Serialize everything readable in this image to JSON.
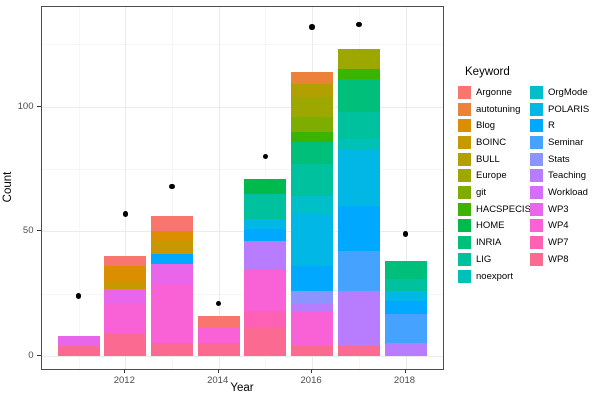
{
  "chart_data": {
    "type": "bar",
    "stacked": true,
    "xlabel": "Year",
    "ylabel": "Count",
    "legend_title": "Keyword",
    "x_major_ticks": [
      2012,
      2014,
      2016,
      2018
    ],
    "x_minor_ticks": [
      2011,
      2013,
      2015,
      2017
    ],
    "y_major_ticks": [
      0,
      50,
      100
    ],
    "y_minor_ticks": [
      25,
      75,
      125
    ],
    "ylim": [
      -6,
      140
    ],
    "grid": true,
    "legend_position": "right",
    "keywords": [
      {
        "label": "Argonne",
        "color": "#F8766D"
      },
      {
        "label": "autotuning",
        "color": "#EC8239"
      },
      {
        "label": "Blog",
        "color": "#DB8E00"
      },
      {
        "label": "BOINC",
        "color": "#C79800"
      },
      {
        "label": "BULL",
        "color": "#B2A000"
      },
      {
        "label": "Europe",
        "color": "#9CA700"
      },
      {
        "label": "git",
        "color": "#7EAD00"
      },
      {
        "label": "HACSPECIS",
        "color": "#3CB300"
      },
      {
        "label": "HOME",
        "color": "#00BB4B"
      },
      {
        "label": "INRIA",
        "color": "#00BF7A"
      },
      {
        "label": "LIG",
        "color": "#00C19E"
      },
      {
        "label": "noexport",
        "color": "#00C1B7"
      },
      {
        "label": "OrgMode",
        "color": "#00BFC9"
      },
      {
        "label": "POLARIS",
        "color": "#00B7E6"
      },
      {
        "label": "R",
        "color": "#00A9FF"
      },
      {
        "label": "Seminar",
        "color": "#45A2FF"
      },
      {
        "label": "Stats",
        "color": "#8C95FF"
      },
      {
        "label": "Teaching",
        "color": "#B87CFF"
      },
      {
        "label": "Workload",
        "color": "#D56FFB"
      },
      {
        "label": "WP3",
        "color": "#E965E9"
      },
      {
        "label": "WP4",
        "color": "#F962D7"
      },
      {
        "label": "WP7",
        "color": "#FF62B5"
      },
      {
        "label": "WP8",
        "color": "#FB6A90"
      }
    ],
    "bars": [
      {
        "year": 2011,
        "total": 8,
        "segments_bottom_to_top": [
          {
            "keyword": "WP8",
            "value": 4
          },
          {
            "keyword": "WP3",
            "value": 4
          }
        ]
      },
      {
        "year": 2012,
        "total": 40,
        "segments_bottom_to_top": [
          {
            "keyword": "WP8",
            "value": 9
          },
          {
            "keyword": "WP4",
            "value": 12
          },
          {
            "keyword": "WP3",
            "value": 6
          },
          {
            "keyword": "BOINC",
            "value": 3
          },
          {
            "keyword": "Blog",
            "value": 6
          },
          {
            "keyword": "Argonne",
            "value": 4
          }
        ]
      },
      {
        "year": 2013,
        "total": 56,
        "segments_bottom_to_top": [
          {
            "keyword": "WP8",
            "value": 5
          },
          {
            "keyword": "WP4",
            "value": 24
          },
          {
            "keyword": "WP3",
            "value": 8
          },
          {
            "keyword": "R",
            "value": 4
          },
          {
            "keyword": "BOINC",
            "value": 5
          },
          {
            "keyword": "Blog",
            "value": 4
          },
          {
            "keyword": "Argonne",
            "value": 6
          }
        ]
      },
      {
        "year": 2014,
        "total": 16,
        "segments_bottom_to_top": [
          {
            "keyword": "WP8",
            "value": 5
          },
          {
            "keyword": "WP4",
            "value": 6
          },
          {
            "keyword": "Argonne",
            "value": 5
          }
        ]
      },
      {
        "year": 2015,
        "total": 71,
        "segments_bottom_to_top": [
          {
            "keyword": "WP8",
            "value": 11
          },
          {
            "keyword": "WP7",
            "value": 7
          },
          {
            "keyword": "WP4",
            "value": 17
          },
          {
            "keyword": "Teaching",
            "value": 11
          },
          {
            "keyword": "R",
            "value": 5
          },
          {
            "keyword": "POLARIS",
            "value": 4
          },
          {
            "keyword": "LIG",
            "value": 10
          },
          {
            "keyword": "HOME",
            "value": 6
          }
        ]
      },
      {
        "year": 2016,
        "total": 114,
        "segments_bottom_to_top": [
          {
            "keyword": "WP8",
            "value": 4
          },
          {
            "keyword": "WP4",
            "value": 14
          },
          {
            "keyword": "Teaching",
            "value": 3
          },
          {
            "keyword": "Stats",
            "value": 5
          },
          {
            "keyword": "R",
            "value": 10
          },
          {
            "keyword": "POLARIS",
            "value": 21
          },
          {
            "keyword": "OrgMode",
            "value": 7
          },
          {
            "keyword": "LIG",
            "value": 13
          },
          {
            "keyword": "INRIA",
            "value": 9
          },
          {
            "keyword": "HACSPECIS",
            "value": 4
          },
          {
            "keyword": "git",
            "value": 6
          },
          {
            "keyword": "Europe",
            "value": 8
          },
          {
            "keyword": "BULL",
            "value": 5
          },
          {
            "keyword": "autotuning",
            "value": 5
          }
        ]
      },
      {
        "year": 2017,
        "total": 123,
        "segments_bottom_to_top": [
          {
            "keyword": "WP8",
            "value": 4
          },
          {
            "keyword": "Teaching",
            "value": 22
          },
          {
            "keyword": "Seminar",
            "value": 16
          },
          {
            "keyword": "R",
            "value": 18
          },
          {
            "keyword": "POLARIS",
            "value": 23
          },
          {
            "keyword": "noexport",
            "value": 4
          },
          {
            "keyword": "LIG",
            "value": 11
          },
          {
            "keyword": "INRIA",
            "value": 13
          },
          {
            "keyword": "HACSPECIS",
            "value": 4
          },
          {
            "keyword": "Europe",
            "value": 8
          }
        ]
      },
      {
        "year": 2018,
        "total": 38,
        "segments_bottom_to_top": [
          {
            "keyword": "Teaching",
            "value": 5
          },
          {
            "keyword": "Seminar",
            "value": 12
          },
          {
            "keyword": "R",
            "value": 5
          },
          {
            "keyword": "POLARIS",
            "value": 4
          },
          {
            "keyword": "LIG",
            "value": 5
          },
          {
            "keyword": "INRIA",
            "value": 7
          }
        ]
      }
    ],
    "points": [
      {
        "year": 2011,
        "value": 24
      },
      {
        "year": 2012,
        "value": 57
      },
      {
        "year": 2013,
        "value": 68
      },
      {
        "year": 2014,
        "value": 21
      },
      {
        "year": 2015,
        "value": 80
      },
      {
        "year": 2016,
        "value": 132
      },
      {
        "year": 2017,
        "value": 133
      },
      {
        "year": 2018,
        "value": 49
      }
    ]
  }
}
